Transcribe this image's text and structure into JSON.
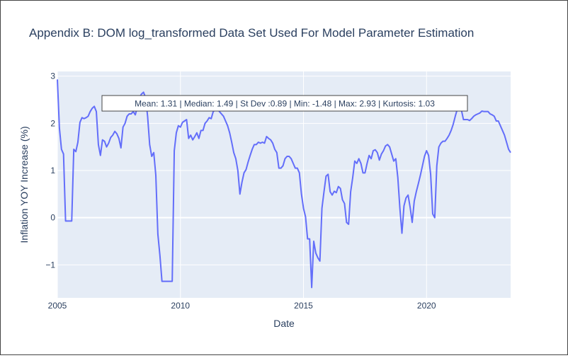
{
  "chart_data": {
    "type": "line",
    "title": "Appendix B: DOM log_transformed Data Set Used For Model Parameter Estimation",
    "xlabel": "Date",
    "ylabel": "Inflation YOY Increase (%)",
    "xlim": [
      "2005-01-01",
      "2023-06-01"
    ],
    "ylim": [
      -1.7,
      3.1
    ],
    "grid": true,
    "legend": "none",
    "x_ticks": [
      {
        "value": "2005-01-01",
        "label": "2005"
      },
      {
        "value": "2010-01-01",
        "label": "2010"
      },
      {
        "value": "2015-01-01",
        "label": "2015"
      },
      {
        "value": "2020-01-01",
        "label": "2020"
      }
    ],
    "y_ticks": [
      {
        "value": 3,
        "label": "3"
      },
      {
        "value": 2,
        "label": "2"
      },
      {
        "value": 1,
        "label": "1"
      },
      {
        "value": 0,
        "label": "0"
      },
      {
        "value": -1,
        "label": "−1"
      }
    ],
    "annotation": "Mean: 1.31 | Median: 1.49 | St Dev :0.89 | Min: -1.48 | Max: 2.93 | Kurtosis: 1.03",
    "colors": {
      "line": "#636efa",
      "plot_bg": "#e5ecf6",
      "grid": "#ffffff",
      "text": "#2a3f5f"
    },
    "series": [
      {
        "points": [
          [
            "2005-01",
            2.93
          ],
          [
            "2005-02",
            1.9
          ],
          [
            "2005-03",
            1.45
          ],
          [
            "2005-04",
            1.35
          ],
          [
            "2005-05",
            -0.07
          ],
          [
            "2005-06",
            -0.07
          ],
          [
            "2005-07",
            -0.07
          ],
          [
            "2005-08",
            -0.07
          ],
          [
            "2005-09",
            1.45
          ],
          [
            "2005-10",
            1.4
          ],
          [
            "2005-11",
            1.6
          ],
          [
            "2005-12",
            2.02
          ],
          [
            "2006-01",
            2.12
          ],
          [
            "2006-02",
            2.1
          ],
          [
            "2006-03",
            2.12
          ],
          [
            "2006-04",
            2.15
          ],
          [
            "2006-05",
            2.25
          ],
          [
            "2006-06",
            2.32
          ],
          [
            "2006-07",
            2.36
          ],
          [
            "2006-08",
            2.25
          ],
          [
            "2006-09",
            1.55
          ],
          [
            "2006-10",
            1.32
          ],
          [
            "2006-11",
            1.65
          ],
          [
            "2006-12",
            1.62
          ],
          [
            "2007-01",
            1.5
          ],
          [
            "2007-02",
            1.58
          ],
          [
            "2007-03",
            1.7
          ],
          [
            "2007-04",
            1.75
          ],
          [
            "2007-05",
            1.83
          ],
          [
            "2007-06",
            1.78
          ],
          [
            "2007-07",
            1.68
          ],
          [
            "2007-08",
            1.48
          ],
          [
            "2007-09",
            1.92
          ],
          [
            "2007-10",
            2.0
          ],
          [
            "2007-11",
            2.15
          ],
          [
            "2007-12",
            2.2
          ],
          [
            "2008-01",
            2.2
          ],
          [
            "2008-02",
            2.25
          ],
          [
            "2008-03",
            2.18
          ],
          [
            "2008-04",
            2.35
          ],
          [
            "2008-05",
            2.55
          ],
          [
            "2008-06",
            2.62
          ],
          [
            "2008-07",
            2.66
          ],
          [
            "2008-08",
            2.55
          ],
          [
            "2008-09",
            2.15
          ],
          [
            "2008-10",
            1.55
          ],
          [
            "2008-11",
            1.3
          ],
          [
            "2008-12",
            1.38
          ],
          [
            "2009-01",
            0.9
          ],
          [
            "2009-02",
            -0.35
          ],
          [
            "2009-03",
            -0.8
          ],
          [
            "2009-04",
            -1.35
          ],
          [
            "2009-05",
            -1.35
          ],
          [
            "2009-06",
            -1.35
          ],
          [
            "2009-07",
            -1.35
          ],
          [
            "2009-08",
            -1.35
          ],
          [
            "2009-09",
            -1.35
          ],
          [
            "2009-10",
            1.42
          ],
          [
            "2009-11",
            1.8
          ],
          [
            "2009-12",
            1.95
          ],
          [
            "2010-01",
            1.92
          ],
          [
            "2010-02",
            2.02
          ],
          [
            "2010-03",
            2.05
          ],
          [
            "2010-04",
            2.08
          ],
          [
            "2010-05",
            1.68
          ],
          [
            "2010-06",
            1.75
          ],
          [
            "2010-07",
            1.65
          ],
          [
            "2010-08",
            1.72
          ],
          [
            "2010-09",
            1.8
          ],
          [
            "2010-10",
            1.68
          ],
          [
            "2010-11",
            1.85
          ],
          [
            "2010-12",
            1.85
          ],
          [
            "2011-01",
            2.0
          ],
          [
            "2011-02",
            2.05
          ],
          [
            "2011-03",
            2.12
          ],
          [
            "2011-04",
            2.1
          ],
          [
            "2011-05",
            2.25
          ],
          [
            "2011-06",
            2.28
          ],
          [
            "2011-07",
            2.32
          ],
          [
            "2011-08",
            2.25
          ],
          [
            "2011-09",
            2.2
          ],
          [
            "2011-10",
            2.15
          ],
          [
            "2011-11",
            2.05
          ],
          [
            "2011-12",
            1.95
          ],
          [
            "2012-01",
            1.8
          ],
          [
            "2012-02",
            1.6
          ],
          [
            "2012-03",
            1.38
          ],
          [
            "2012-04",
            1.25
          ],
          [
            "2012-05",
            1.0
          ],
          [
            "2012-06",
            0.5
          ],
          [
            "2012-07",
            0.75
          ],
          [
            "2012-08",
            0.95
          ],
          [
            "2012-09",
            1.02
          ],
          [
            "2012-10",
            1.18
          ],
          [
            "2012-11",
            1.32
          ],
          [
            "2012-12",
            1.45
          ],
          [
            "2013-01",
            1.55
          ],
          [
            "2013-02",
            1.55
          ],
          [
            "2013-03",
            1.6
          ],
          [
            "2013-04",
            1.58
          ],
          [
            "2013-05",
            1.6
          ],
          [
            "2013-06",
            1.58
          ],
          [
            "2013-07",
            1.72
          ],
          [
            "2013-08",
            1.68
          ],
          [
            "2013-09",
            1.65
          ],
          [
            "2013-10",
            1.58
          ],
          [
            "2013-11",
            1.45
          ],
          [
            "2013-12",
            1.38
          ],
          [
            "2014-01",
            1.05
          ],
          [
            "2014-02",
            1.05
          ],
          [
            "2014-03",
            1.1
          ],
          [
            "2014-04",
            1.25
          ],
          [
            "2014-05",
            1.3
          ],
          [
            "2014-06",
            1.3
          ],
          [
            "2014-07",
            1.25
          ],
          [
            "2014-08",
            1.15
          ],
          [
            "2014-09",
            1.05
          ],
          [
            "2014-10",
            1.05
          ],
          [
            "2014-11",
            0.95
          ],
          [
            "2014-12",
            0.5
          ],
          [
            "2015-01",
            0.2
          ],
          [
            "2015-02",
            0.02
          ],
          [
            "2015-03",
            -0.45
          ],
          [
            "2015-04",
            -0.45
          ],
          [
            "2015-05",
            -1.48
          ],
          [
            "2015-06",
            -0.5
          ],
          [
            "2015-07",
            -0.75
          ],
          [
            "2015-08",
            -0.85
          ],
          [
            "2015-09",
            -0.92
          ],
          [
            "2015-10",
            0.2
          ],
          [
            "2015-11",
            0.55
          ],
          [
            "2015-12",
            0.88
          ],
          [
            "2016-01",
            0.92
          ],
          [
            "2016-02",
            0.55
          ],
          [
            "2016-03",
            0.48
          ],
          [
            "2016-04",
            0.56
          ],
          [
            "2016-05",
            0.53
          ],
          [
            "2016-06",
            0.66
          ],
          [
            "2016-07",
            0.62
          ],
          [
            "2016-08",
            0.38
          ],
          [
            "2016-09",
            0.3
          ],
          [
            "2016-10",
            -0.1
          ],
          [
            "2016-11",
            -0.14
          ],
          [
            "2016-12",
            0.55
          ],
          [
            "2017-01",
            0.85
          ],
          [
            "2017-02",
            1.2
          ],
          [
            "2017-03",
            1.15
          ],
          [
            "2017-04",
            1.25
          ],
          [
            "2017-05",
            1.15
          ],
          [
            "2017-06",
            0.95
          ],
          [
            "2017-07",
            0.95
          ],
          [
            "2017-08",
            1.15
          ],
          [
            "2017-09",
            1.32
          ],
          [
            "2017-10",
            1.25
          ],
          [
            "2017-11",
            1.42
          ],
          [
            "2017-12",
            1.44
          ],
          [
            "2018-01",
            1.38
          ],
          [
            "2018-02",
            1.22
          ],
          [
            "2018-03",
            1.35
          ],
          [
            "2018-04",
            1.42
          ],
          [
            "2018-05",
            1.52
          ],
          [
            "2018-06",
            1.55
          ],
          [
            "2018-07",
            1.5
          ],
          [
            "2018-08",
            1.35
          ],
          [
            "2018-09",
            1.2
          ],
          [
            "2018-10",
            1.25
          ],
          [
            "2018-11",
            0.85
          ],
          [
            "2018-12",
            0.2
          ],
          [
            "2019-01",
            -0.33
          ],
          [
            "2019-02",
            0.25
          ],
          [
            "2019-03",
            0.42
          ],
          [
            "2019-04",
            0.48
          ],
          [
            "2019-05",
            0.22
          ],
          [
            "2019-06",
            -0.1
          ],
          [
            "2019-07",
            0.35
          ],
          [
            "2019-08",
            0.55
          ],
          [
            "2019-09",
            0.72
          ],
          [
            "2019-10",
            0.9
          ],
          [
            "2019-11",
            1.1
          ],
          [
            "2019-12",
            1.3
          ],
          [
            "2020-01",
            1.42
          ],
          [
            "2020-02",
            1.32
          ],
          [
            "2020-03",
            0.92
          ],
          [
            "2020-04",
            0.08
          ],
          [
            "2020-05",
            0.0
          ],
          [
            "2020-06",
            1.1
          ],
          [
            "2020-07",
            1.5
          ],
          [
            "2020-08",
            1.58
          ],
          [
            "2020-09",
            1.62
          ],
          [
            "2020-10",
            1.62
          ],
          [
            "2020-11",
            1.68
          ],
          [
            "2020-12",
            1.75
          ],
          [
            "2021-01",
            1.85
          ],
          [
            "2021-02",
            1.98
          ],
          [
            "2021-03",
            2.15
          ],
          [
            "2021-04",
            2.3
          ],
          [
            "2021-05",
            2.38
          ],
          [
            "2021-06",
            2.28
          ],
          [
            "2021-07",
            2.08
          ],
          [
            "2021-08",
            2.08
          ],
          [
            "2021-09",
            2.08
          ],
          [
            "2021-10",
            2.06
          ],
          [
            "2021-11",
            2.1
          ],
          [
            "2021-12",
            2.15
          ],
          [
            "2022-01",
            2.18
          ],
          [
            "2022-02",
            2.2
          ],
          [
            "2022-03",
            2.22
          ],
          [
            "2022-04",
            2.26
          ],
          [
            "2022-05",
            2.25
          ],
          [
            "2022-06",
            2.25
          ],
          [
            "2022-07",
            2.25
          ],
          [
            "2022-08",
            2.2
          ],
          [
            "2022-09",
            2.18
          ],
          [
            "2022-10",
            2.15
          ],
          [
            "2022-11",
            2.05
          ],
          [
            "2022-12",
            2.05
          ],
          [
            "2023-01",
            1.95
          ],
          [
            "2023-02",
            1.85
          ],
          [
            "2023-03",
            1.75
          ],
          [
            "2023-04",
            1.6
          ],
          [
            "2023-05",
            1.45
          ],
          [
            "2023-06",
            1.38
          ]
        ]
      }
    ]
  }
}
